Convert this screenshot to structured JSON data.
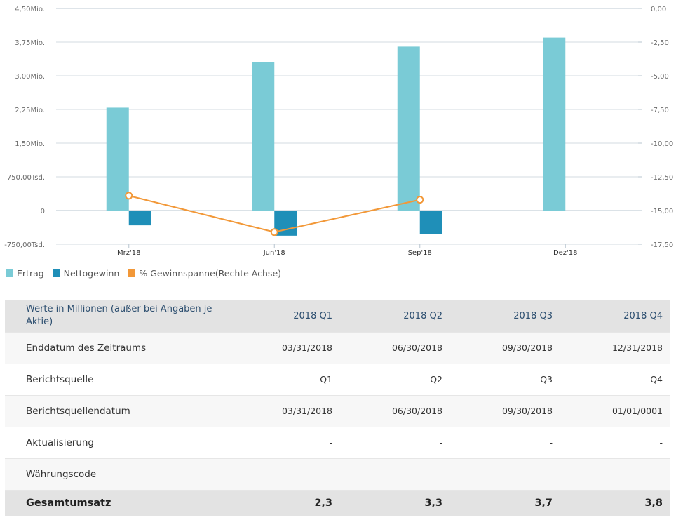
{
  "chart_data": {
    "type": "bar",
    "categories": [
      "Mrz'18",
      "Jun'18",
      "Sep'18",
      "Dez'18"
    ],
    "series": [
      {
        "name": "Ertrag",
        "values": [
          2.29,
          3.31,
          3.65,
          3.85
        ],
        "axis": "left",
        "color": "#7acbd6",
        "kind": "bar"
      },
      {
        "name": "Nettogewinn",
        "values": [
          -0.33,
          -0.56,
          -0.52,
          null
        ],
        "axis": "left",
        "color": "#1f8fb8",
        "kind": "bar"
      },
      {
        "name": "% Gewinnspanne(Rechte Achse)",
        "values": [
          -13.9,
          -16.6,
          -14.2,
          null
        ],
        "axis": "right",
        "color": "#f29838",
        "kind": "line"
      }
    ],
    "y_left": {
      "ticks": [
        4.5,
        3.75,
        3.0,
        2.25,
        1.5,
        0.75,
        0,
        -0.75
      ],
      "tick_labels": [
        "4,50Mio.",
        "3,75Mio.",
        "3,00Mio.",
        "2,25Mio.",
        "1,50Mio.",
        "750,00Tsd.",
        "0",
        "-750,00Tsd."
      ],
      "ylim": [
        -0.75,
        4.5
      ]
    },
    "y_right": {
      "ticks": [
        0,
        -2.5,
        -5,
        -7.5,
        -10,
        -12.5,
        -15,
        -17.5
      ],
      "tick_labels": [
        "0,00",
        "-2,50",
        "-5,00",
        "-7,50",
        "-10,00",
        "-12,50",
        "-15,00",
        "-17,50"
      ],
      "ylim": [
        -17.5,
        0
      ]
    },
    "grid": true,
    "legend_position": "bottom-left"
  },
  "table": {
    "header_label": "Werte in Millionen (außer bei Angaben je Aktie)",
    "columns": [
      "2018 Q1",
      "2018 Q2",
      "2018 Q3",
      "2018 Q4"
    ],
    "rows": [
      {
        "label": "Enddatum des Zeitraums",
        "values": [
          "03/31/2018",
          "06/30/2018",
          "09/30/2018",
          "12/31/2018"
        ]
      },
      {
        "label": "Berichtsquelle",
        "values": [
          "Q1",
          "Q2",
          "Q3",
          "Q4"
        ]
      },
      {
        "label": "Berichtsquellendatum",
        "values": [
          "03/31/2018",
          "06/30/2018",
          "09/30/2018",
          "01/01/0001"
        ]
      },
      {
        "label": "Aktualisierung",
        "values": [
          "-",
          "-",
          "-",
          "-"
        ]
      },
      {
        "label": "Währungscode",
        "values": [
          "",
          "",
          "",
          ""
        ]
      }
    ],
    "total_row": {
      "label": "Gesamtumsatz",
      "values": [
        "2,3",
        "3,3",
        "3,7",
        "3,8"
      ]
    }
  }
}
